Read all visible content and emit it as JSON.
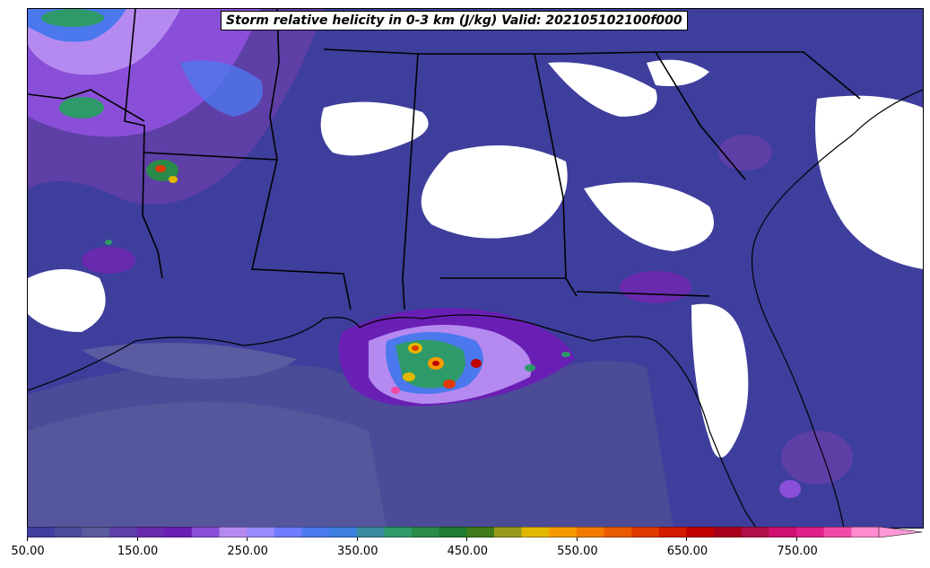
{
  "title": "Storm relative helicity in 0-3 km (J/kg) Valid: 2021051021​00f000",
  "colorbar": {
    "min": 50,
    "max": 850,
    "step": 25,
    "extend": "max",
    "tick_labels": [
      "50.00",
      "150.00",
      "250.00",
      "350.00",
      "450.00",
      "550.00",
      "650.00",
      "750.00"
    ],
    "tick_values": [
      50,
      150,
      250,
      350,
      450,
      550,
      650,
      750
    ],
    "colors": [
      "#3f3fa0",
      "#4b4b9a",
      "#5a5a9c",
      "#5e3fa6",
      "#6a2aae",
      "#6a1fb4",
      "#8a4fd8",
      "#b58af0",
      "#9a8cff",
      "#6f7cff",
      "#4c78ee",
      "#3d7fe0",
      "#3a8aa0",
      "#2e9a6a",
      "#2a8a4a",
      "#1f7a30",
      "#3f7a1a",
      "#9a9a1a",
      "#e2b800",
      "#f59a00",
      "#f27a00",
      "#ea5a00",
      "#e03a00",
      "#d41a00",
      "#c00000",
      "#a8001a",
      "#b0104a",
      "#d01070",
      "#e0208a",
      "#f04aa8",
      "#ff8ad0"
    ],
    "extend_color": "#ff9ad8"
  },
  "map": {
    "background": "#3d3d9a",
    "land_outline_color": "#000000"
  }
}
